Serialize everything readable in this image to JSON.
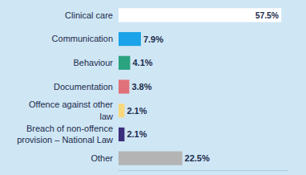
{
  "chart_data": {
    "type": "bar",
    "orientation": "horizontal",
    "categories": [
      "Clinical care",
      "Communication",
      "Behaviour",
      "Documentation",
      "Offence against other law",
      "Breach of non-offence provision – National Law",
      "Other"
    ],
    "values": [
      57.5,
      7.9,
      4.1,
      3.8,
      2.1,
      2.1,
      22.5
    ],
    "value_labels": [
      "57.5%",
      "7.9%",
      "4.1%",
      "3.8%",
      "2.1%",
      "2.1%",
      "22.5%"
    ],
    "colors": [
      "#ffffff",
      "#1aa3e8",
      "#2aa37f",
      "#e0717a",
      "#f7d87c",
      "#3a2d7c",
      "#b4b4b4"
    ],
    "xlim": [
      0,
      60
    ],
    "xticks": [],
    "data_labels": true,
    "tick_labels": "y",
    "grid": false
  }
}
